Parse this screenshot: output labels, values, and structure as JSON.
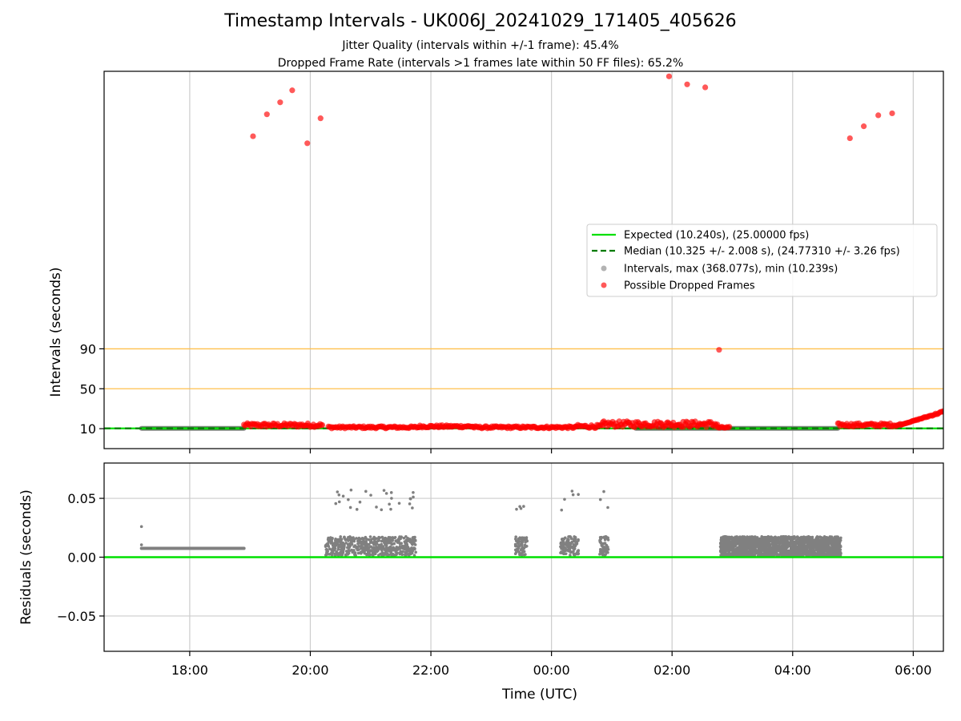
{
  "title": "Timestamp Intervals - UK006J_20241029_171405_405626",
  "subtitle_1": "Jitter Quality (intervals within +/-1 frame): 45.4%",
  "subtitle_2": "Dropped Frame Rate (intervals >1 frames late within 50 FF files): 65.2%",
  "colors": {
    "expected": "#00e000",
    "median": "#007a00",
    "intervals": "#808080",
    "dropped": "#ff0000",
    "threshold": "#ffc04d",
    "grid": "#cccccc"
  },
  "chart_data": [
    {
      "type": "scatter",
      "ylabel": "Intervals (seconds)",
      "x_unit": "hours from 00:00 UTC (2024-10-29 17:14 to 2024-10-30 06:25)",
      "xlim": [
        -7.42,
        6.5
      ],
      "x_ticks": [
        -6,
        -4,
        -2,
        0,
        2,
        4,
        6
      ],
      "x_tick_labels": [
        "18:00",
        "20:00",
        "22:00",
        "00:00",
        "02:00",
        "04:00",
        "06:00"
      ],
      "ylim": [
        -10,
        368.077
      ],
      "y_ticks": [
        10,
        50,
        90
      ],
      "y_tick_labels": [
        "10",
        "50",
        "90"
      ],
      "threshold_lines": [
        50,
        90
      ],
      "grid": true,
      "legend_position": "center-right",
      "legend": [
        "Expected (10.240s), (25.00000 fps)",
        "Median (10.325 +/- 2.008 s), (24.77310 +/- 3.26 fps)",
        "Intervals, max (368.077s), min (10.239s)",
        "Possible Dropped Frames"
      ],
      "expected_interval": 10.24,
      "median_interval": 10.325,
      "interval_segments": [
        {
          "x_start": -6.8,
          "x_end": -5.1,
          "y": 10.25
        },
        {
          "x_start": 1.4,
          "x_end": 4.75,
          "y": 10.26
        }
      ],
      "dropped_frames_outliers": [
        {
          "x": -4.95,
          "y": 303
        },
        {
          "x": -4.72,
          "y": 325
        },
        {
          "x": -4.5,
          "y": 337
        },
        {
          "x": -4.3,
          "y": 349
        },
        {
          "x": -4.05,
          "y": 296
        },
        {
          "x": -3.83,
          "y": 321
        },
        {
          "x": 1.95,
          "y": 363
        },
        {
          "x": 2.25,
          "y": 355
        },
        {
          "x": 2.55,
          "y": 352
        },
        {
          "x": 2.78,
          "y": 89
        },
        {
          "x": 4.95,
          "y": 301
        },
        {
          "x": 5.18,
          "y": 313
        },
        {
          "x": 5.42,
          "y": 324
        },
        {
          "x": 5.65,
          "y": 326
        }
      ],
      "dropped_frames_bands": [
        {
          "x_start": -5.1,
          "x_end": -3.8,
          "y_low": 11.5,
          "y_high": 15.5
        },
        {
          "x_start": -3.7,
          "x_end": -2.2,
          "y_low": 10.2,
          "y_high": 12.5
        },
        {
          "x_start": -2.2,
          "x_end": -1.3,
          "y_low": 11.0,
          "y_high": 13.5
        },
        {
          "x_start": -1.3,
          "x_end": 0.4,
          "y_low": 10.2,
          "y_high": 12.5
        },
        {
          "x_start": 0.4,
          "x_end": 0.85,
          "y_low": 10.5,
          "y_high": 14.0
        },
        {
          "x_start": 0.85,
          "x_end": 2.75,
          "y_low": 11.5,
          "y_high": 17.5
        },
        {
          "x_start": 2.75,
          "x_end": 2.95,
          "y_low": 10.2,
          "y_high": 12.0
        },
        {
          "x_start": 4.75,
          "x_end": 5.8,
          "y_low": 12.0,
          "y_high": 15.5
        },
        {
          "x_start": 5.8,
          "x_end": 6.5,
          "y_low": 14.0,
          "y_high": 28.0
        }
      ]
    },
    {
      "type": "scatter",
      "xlabel": "Time (UTC)",
      "ylabel": "Residuals (seconds)",
      "xlim": [
        -7.42,
        6.5
      ],
      "x_ticks": [
        -6,
        -4,
        -2,
        0,
        2,
        4,
        6
      ],
      "x_tick_labels": [
        "18:00",
        "20:00",
        "22:00",
        "00:00",
        "02:00",
        "04:00",
        "06:00"
      ],
      "ylim": [
        -0.08,
        0.08
      ],
      "y_ticks": [
        0.05,
        0.0,
        -0.05
      ],
      "y_tick_labels": [
        "0.05",
        "0.00",
        "−0.05"
      ],
      "grid": true,
      "zero_line": 0.0,
      "series": [
        {
          "x_start": -6.8,
          "x_end": -5.1,
          "level": 0.0075,
          "note_first_point": 0.026
        },
        {
          "x_start": -3.75,
          "x_end": -2.25,
          "low": 0.0015,
          "high": 0.0175,
          "outlier_high": 0.058
        },
        {
          "x_start": -0.6,
          "x_end": -0.4,
          "low": 0.0015,
          "high": 0.0175,
          "outlier_high": 0.046
        },
        {
          "x_start": 0.15,
          "x_end": 0.45,
          "low": 0.0015,
          "high": 0.0175,
          "outlier_high": 0.057
        },
        {
          "x_start": 0.8,
          "x_end": 0.95,
          "low": 0.0015,
          "high": 0.0175,
          "outlier_high": 0.059
        },
        {
          "x_start": 2.8,
          "x_end": 4.8,
          "low": 0.0005,
          "high": 0.0175
        }
      ]
    }
  ]
}
